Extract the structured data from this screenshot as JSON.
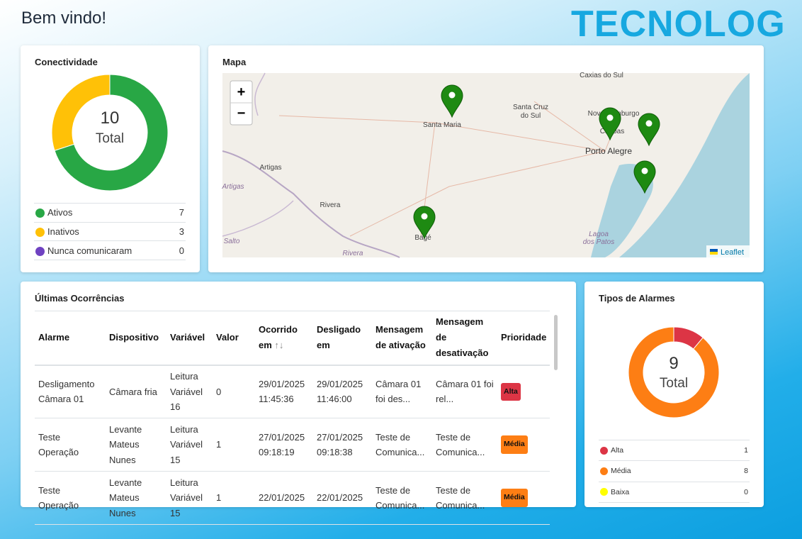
{
  "header": {
    "title": "Bem vindo!",
    "logo": "TECNOLOG"
  },
  "connectivity": {
    "title": "Conectividade",
    "total": 10,
    "total_label": "Total",
    "items": [
      {
        "name": "Ativos",
        "value": 7,
        "color": "#28a745"
      },
      {
        "name": "Inativos",
        "value": 3,
        "color": "#ffc107"
      },
      {
        "name": "Nunca comunicaram",
        "value": 0,
        "color": "#6f42c1"
      }
    ]
  },
  "map": {
    "title": "Mapa",
    "zoom_in": "+",
    "zoom_out": "−",
    "attribution": "Leaflet",
    "places": [
      "Caxias do Sul",
      "Santa Cruz",
      "do Sul",
      "Santa Maria",
      "Novo Hamburgo",
      "Canoas",
      "Porto Alegre",
      "Artigas",
      "Artigas",
      "Rivera",
      "Bagé",
      "Salto",
      "Rivera",
      "Lagoa",
      "dos Patos"
    ]
  },
  "occurrences": {
    "title": "Últimas Ocorrências",
    "columns": [
      "Alarme",
      "Dispositivo",
      "Variável",
      "Valor",
      "Ocorrido em",
      "Desligado em",
      "Mensagem de ativação",
      "Mensagem de desativação",
      "Prioridade"
    ],
    "sort_icon": "↑↓",
    "rows": [
      [
        "Desligamento Câmara 01",
        "Câmara fria",
        "Leitura Variável 16",
        "0",
        "29/01/2025 11:45:36",
        "29/01/2025 11:46:00",
        "Câmara 01 foi des...",
        "Câmara 01 foi rel...",
        "Alta"
      ],
      [
        "Teste Operação",
        "Levante Mateus Nunes",
        "Leitura Variável 15",
        "1",
        "27/01/2025 09:18:19",
        "27/01/2025 09:18:38",
        "Teste de Comunica...",
        "Teste de Comunica...",
        "Média"
      ],
      [
        "Teste Operação",
        "Levante Mateus Nunes",
        "Leitura Variável 15",
        "1",
        "22/01/2025",
        "22/01/2025",
        "Teste de Comunica...",
        "Teste de Comunica...",
        "Média"
      ]
    ]
  },
  "alarm_types": {
    "title": "Tipos de Alarmes",
    "total": 9,
    "total_label": "Total",
    "items": [
      {
        "name": "Alta",
        "value": 1,
        "color": "#dc3545"
      },
      {
        "name": "Média",
        "value": 8,
        "color": "#fd7e14"
      },
      {
        "name": "Baixa",
        "value": 0,
        "color": "#ffff00"
      }
    ]
  }
}
